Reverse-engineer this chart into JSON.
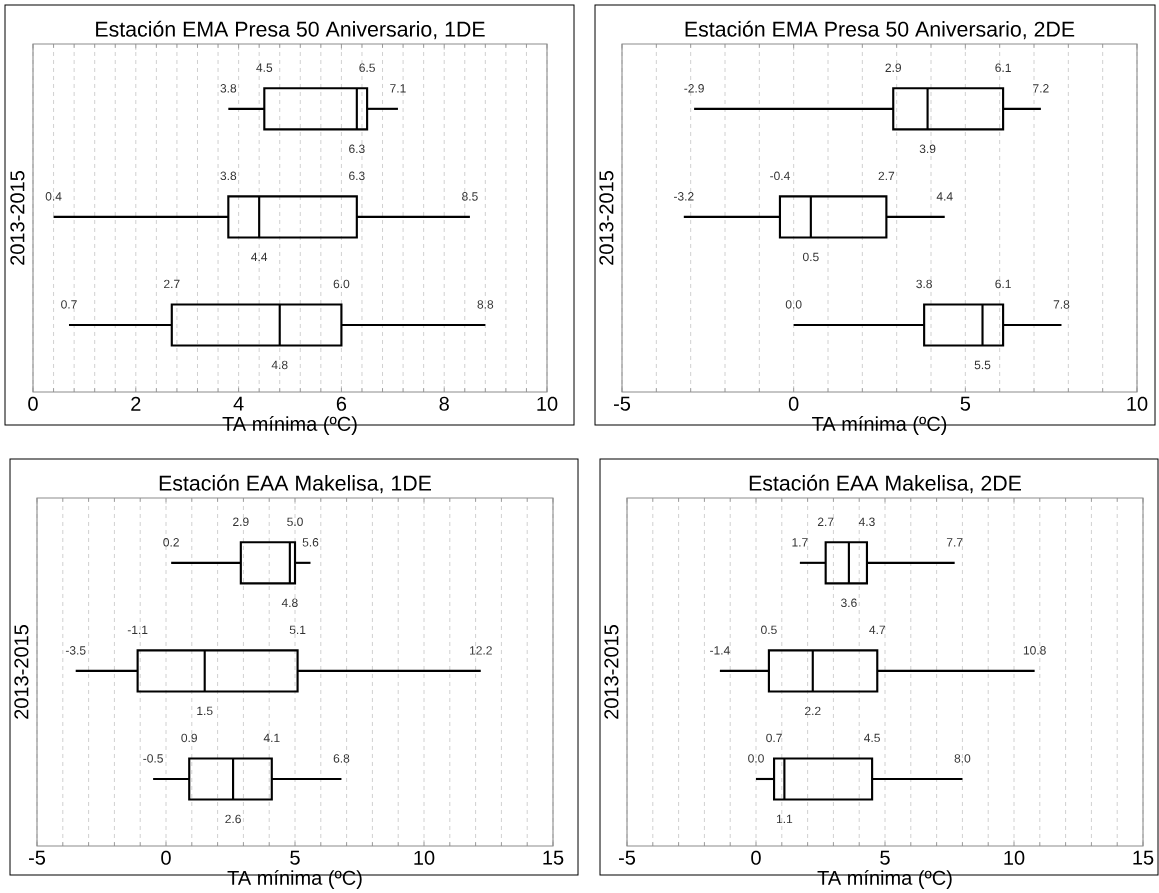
{
  "chart_data": [
    {
      "type": "box",
      "orientation": "horizontal",
      "title": "Estación EMA Presa 50 Aniversario, 1DE",
      "xlabel": "TA mínima (ºC)",
      "ylabel": "2013-2015",
      "categories": [
        null,
        null,
        null
      ],
      "color": "#000000",
      "xlim": [
        0,
        10
      ],
      "xticks": [
        0,
        2,
        4,
        6,
        8,
        10
      ],
      "grid": "x",
      "boxes": [
        {
          "low": 3.8,
          "q1": 4.5,
          "median": 6.3,
          "q3": 6.5,
          "high": 7.1
        },
        {
          "low": 0.4,
          "q1": 3.8,
          "median": 4.4,
          "q3": 6.3,
          "high": 8.5
        },
        {
          "low": 0.7,
          "q1": 2.7,
          "median": 4.8,
          "q3": 6.0,
          "high": 8.8
        }
      ],
      "annotations": [
        "3.8",
        "4.5",
        "6.3",
        "6.5",
        "7.1",
        "0.4",
        "3.8",
        "4.4",
        "6.3",
        "8.5",
        "0.7",
        "2.7",
        "4.8",
        "6.0",
        "8.8"
      ]
    },
    {
      "type": "box",
      "orientation": "horizontal",
      "title": "Estación EMA Presa 50 Aniversario, 2DE",
      "xlabel": "TA mínima (ºC)",
      "ylabel": "2013-2015",
      "categories": [
        null,
        null,
        null
      ],
      "color": "#000000",
      "xlim": [
        -5,
        10
      ],
      "xticks": [
        -5,
        0,
        5,
        10
      ],
      "grid": "x",
      "boxes": [
        {
          "low": -2.9,
          "q1": 2.9,
          "median": 3.9,
          "q3": 6.1,
          "high": 7.2
        },
        {
          "low": -3.2,
          "q1": -0.4,
          "median": 0.5,
          "q3": 2.7,
          "high": 4.4
        },
        {
          "low": 0.0,
          "q1": 3.8,
          "median": 5.5,
          "q3": 6.1,
          "high": 7.8
        }
      ],
      "annotations": [
        "-2.9",
        "2.9",
        "3.9",
        "6.1",
        "7.2",
        "-3.2",
        "-0.4",
        "0.5",
        "2.7",
        "4.4",
        "0.0",
        "3.8",
        "5.5",
        "6.1",
        "7.8"
      ]
    },
    {
      "type": "box",
      "orientation": "horizontal",
      "title": "Estación EAA Makelisa, 1DE",
      "xlabel": "TA mínima (ºC)",
      "ylabel": "2013-2015",
      "categories": [
        null,
        null,
        null
      ],
      "color": "#000000",
      "xlim": [
        -5,
        15
      ],
      "xticks": [
        -5,
        0,
        5,
        10,
        15
      ],
      "grid": "x",
      "boxes": [
        {
          "low": 0.2,
          "q1": 2.9,
          "median": 4.8,
          "q3": 5.0,
          "high": 5.6
        },
        {
          "low": -3.5,
          "q1": -1.1,
          "median": 1.5,
          "q3": 5.1,
          "high": 12.2
        },
        {
          "low": -0.5,
          "q1": 0.9,
          "median": 2.6,
          "q3": 4.1,
          "high": 6.8
        }
      ],
      "annotations": [
        "0.2",
        "2.9",
        "4.8",
        "5.0",
        "5.6",
        "-3.5",
        "-1.1",
        "1.5",
        "5.1",
        "12.2",
        "-0.5",
        "0.9",
        "2.6",
        "4.1",
        "6.8"
      ]
    },
    {
      "type": "box",
      "orientation": "horizontal",
      "title": "Estación EAA Makelisa, 2DE",
      "xlabel": "TA mínima (ºC)",
      "ylabel": "2013-2015",
      "categories": [
        null,
        null,
        null
      ],
      "color": "#000000",
      "xlim": [
        -5,
        15
      ],
      "xticks": [
        -5,
        0,
        5,
        10,
        15
      ],
      "grid": "x",
      "boxes": [
        {
          "low": 1.7,
          "q1": 2.7,
          "median": 3.6,
          "q3": 4.3,
          "high": 7.7
        },
        {
          "low": -1.4,
          "q1": 0.5,
          "median": 2.2,
          "q3": 4.7,
          "high": 10.8
        },
        {
          "low": 0.0,
          "q1": 0.7,
          "median": 1.1,
          "q3": 4.5,
          "high": 8.0
        }
      ],
      "annotations": [
        "1.7",
        "2.7",
        "3.6",
        "4.3",
        "7.7",
        "-1.4",
        "0.5",
        "2.2",
        "4.7",
        "10.8",
        "0.0",
        "0.7",
        "1.1",
        "4.5",
        "8.0"
      ]
    }
  ]
}
